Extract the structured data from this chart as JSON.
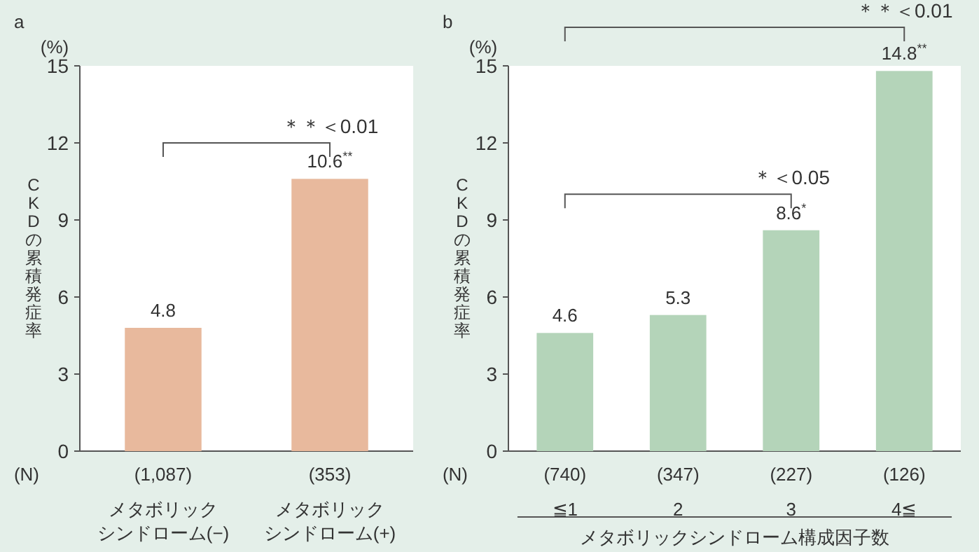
{
  "chart_data": [
    {
      "type": "bar",
      "title": "a",
      "ylabel": "CKDの累積発症率",
      "categories": [
        "(1,087)\nメタボリックシンドローム(−)",
        "(353)\nメタボリックシンドローム(+)"
      ],
      "values": [
        4.8,
        10.6
      ],
      "color": "#e8b99d",
      "value_labels": [
        "4.8",
        "10.6$^{**}$"
      ],
      "ylim": [
        0,
        15
      ],
      "yticks": [
        0,
        3,
        6,
        9,
        12,
        15
      ],
      "annotations": [
        "(%)",
        "(N)",
        "＊＊＜0.01"
      ]
    },
    {
      "type": "bar",
      "title": "b",
      "ylabel": "CKDの累積発症率",
      "xlabel": "メタボリックシンドローム構成因子数",
      "categories": [
        "(740)\n≦1",
        "(347)\n2",
        "(227)\n3",
        "(126)\n4≦"
      ],
      "values": [
        4.6,
        5.3,
        8.6,
        14.8
      ],
      "color": "#b4d4b9",
      "value_labels": [
        "4.6",
        "5.3",
        "8.6$^{*}$",
        "14.8$^{**}$"
      ],
      "ylim": [
        0,
        15
      ],
      "yticks": [
        0,
        3,
        6,
        9,
        12,
        15
      ],
      "annotations": [
        "(%)",
        "(N)",
        "＊＜0.05",
        "＊＊＜0.01"
      ]
    }
  ]
}
